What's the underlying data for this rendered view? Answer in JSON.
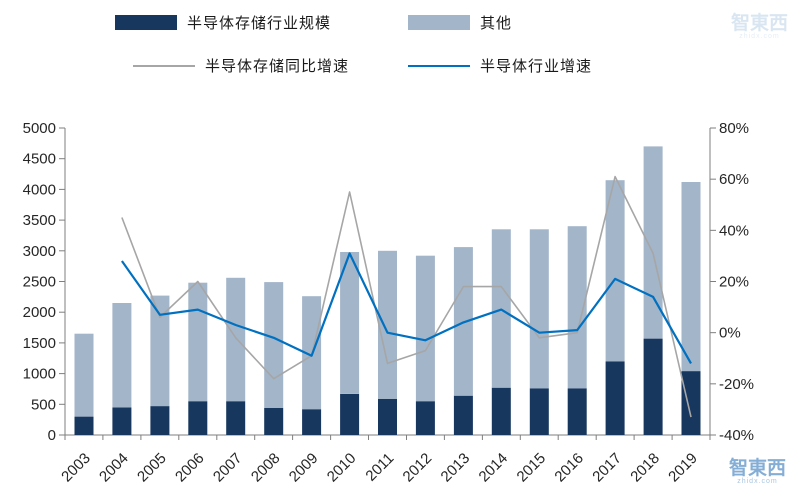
{
  "legend": [
    {
      "label": "半导体存储行业规模",
      "type": "bar",
      "color": "#17375e"
    },
    {
      "label": "其他",
      "type": "bar",
      "color": "#a3b5c9"
    },
    {
      "label": "半导体存储同比增速",
      "type": "line",
      "color": "#a6a6a6"
    },
    {
      "label": "半导体行业增速",
      "type": "line",
      "color": "#0070c0"
    }
  ],
  "watermark": {
    "text": "智東西",
    "subtext": "zhidx.com"
  },
  "chart_data": {
    "type": "bar",
    "subtype": "stacked-bar-with-lines",
    "title": "",
    "xlabel": "",
    "ylabel_left": "",
    "ylabel_right": "",
    "grid": false,
    "legend_position": "top",
    "categories": [
      "2003",
      "2004",
      "2005",
      "2006",
      "2007",
      "2008",
      "2009",
      "2010",
      "2011",
      "2012",
      "2013",
      "2014",
      "2015",
      "2016",
      "2017",
      "2018",
      "2019"
    ],
    "left_axis": {
      "min": 0,
      "max": 5000,
      "step": 500
    },
    "right_axis": {
      "min": -40,
      "max": 80,
      "step": 20,
      "format": "percent"
    },
    "bar_series": [
      {
        "name": "半导体存储行业规模",
        "color": "#17375e",
        "stack": "total",
        "values": [
          300,
          450,
          470,
          550,
          550,
          440,
          420,
          670,
          590,
          550,
          640,
          770,
          760,
          760,
          1200,
          1570,
          1040
        ]
      },
      {
        "name": "其他",
        "color": "#a3b5c9",
        "stack": "total",
        "values": [
          1350,
          1700,
          1800,
          1930,
          2010,
          2050,
          1840,
          2310,
          2410,
          2370,
          2420,
          2580,
          2590,
          2640,
          2950,
          3130,
          3080
        ]
      }
    ],
    "line_series": [
      {
        "name": "半导体存储同比增速",
        "color": "#a6a6a6",
        "axis": "right",
        "width": 1.6,
        "values": [
          null,
          45,
          6,
          20,
          -2,
          -18,
          -9,
          55,
          -12,
          -7,
          18,
          18,
          -2,
          0,
          61,
          31,
          -33
        ]
      },
      {
        "name": "半导体行业增速",
        "color": "#0070c0",
        "axis": "right",
        "width": 2.2,
        "values": [
          null,
          28,
          7,
          9,
          3,
          -2,
          -9,
          31,
          0,
          -3,
          4,
          9,
          0,
          1,
          21,
          14,
          -12
        ]
      }
    ]
  }
}
